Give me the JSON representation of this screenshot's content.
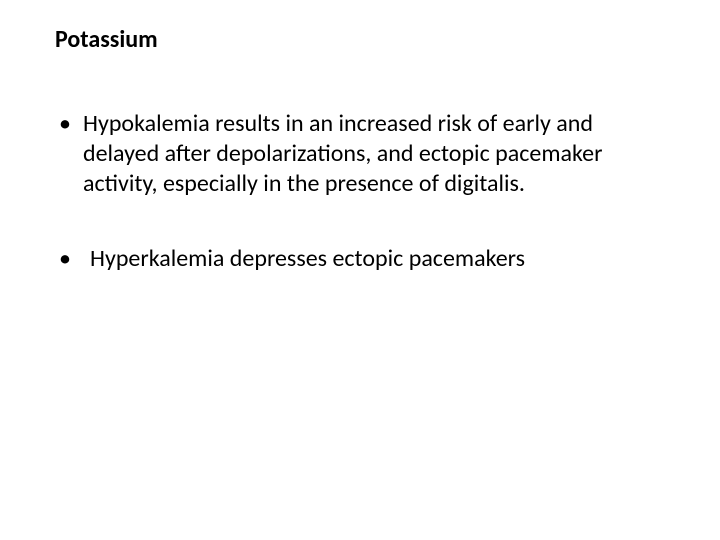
{
  "title": "Potassium",
  "bullets": [
    {
      "text": "Hypokalemia results in an increased risk of early and delayed after depolarizations, and ectopic pacemaker activity, especially in the presence of digitalis."
    },
    {
      "text": " Hyperkalemia depresses ectopic pacemakers"
    }
  ]
}
